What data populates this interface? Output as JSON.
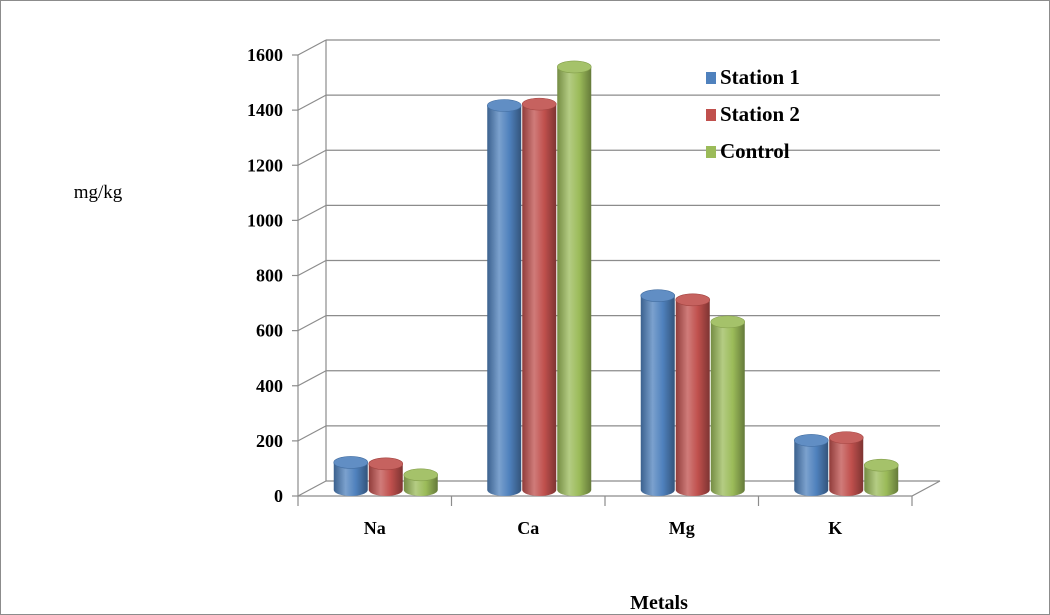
{
  "chart_data": {
    "type": "bar",
    "style": "3d-cylinder",
    "categories": [
      "Na",
      "Ca",
      "Mg",
      "K"
    ],
    "series": [
      {
        "name": "Station 1",
        "color": "#4F81BD",
        "values": [
          100,
          1395,
          705,
          180
        ]
      },
      {
        "name": "Station 2",
        "color": "#C0504D",
        "values": [
          95,
          1400,
          690,
          190
        ]
      },
      {
        "name": "Control",
        "color": "#9BBB59",
        "values": [
          55,
          1535,
          610,
          90
        ]
      }
    ],
    "ylabel": "mg/kg",
    "xlabel": "Metals",
    "ylim": [
      0,
      1600
    ],
    "yticks": [
      0,
      200,
      400,
      600,
      800,
      1000,
      1200,
      1400,
      1600
    ],
    "grid": true,
    "legend": "top-right"
  }
}
